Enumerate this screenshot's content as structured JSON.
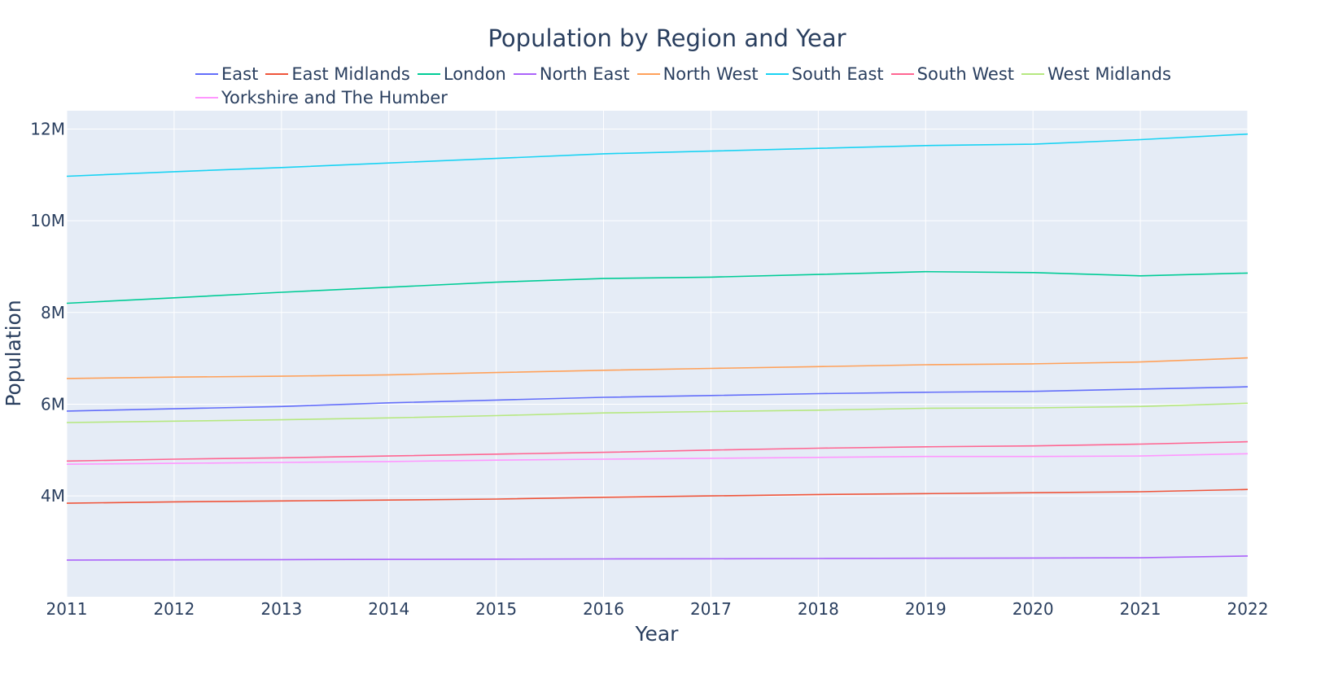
{
  "chart_data": {
    "type": "line",
    "title": "Population by Region and Year",
    "xlabel": "Year",
    "ylabel": "Population",
    "x": [
      2011,
      2012,
      2013,
      2014,
      2015,
      2016,
      2017,
      2018,
      2019,
      2020,
      2021,
      2022
    ],
    "x_ticks": [
      "2011",
      "2012",
      "2013",
      "2014",
      "2015",
      "2016",
      "2017",
      "2018",
      "2019",
      "2020",
      "2021",
      "2022"
    ],
    "ylim": [
      1800000,
      12400000
    ],
    "y_ticks": [
      {
        "value": 4000000,
        "label": "4M"
      },
      {
        "value": 6000000,
        "label": "6M"
      },
      {
        "value": 8000000,
        "label": "8M"
      },
      {
        "value": 10000000,
        "label": "10M"
      },
      {
        "value": 12000000,
        "label": "12M"
      }
    ],
    "grid": true,
    "legend_position": "top",
    "series": [
      {
        "name": "East",
        "color": "#636efa",
        "values": [
          5850000,
          5900000,
          5950000,
          6030000,
          6090000,
          6150000,
          6190000,
          6230000,
          6260000,
          6280000,
          6330000,
          6380000
        ]
      },
      {
        "name": "East Midlands",
        "color": "#EF553B",
        "values": [
          3840000,
          3870000,
          3890000,
          3910000,
          3930000,
          3970000,
          4000000,
          4030000,
          4050000,
          4070000,
          4090000,
          4140000
        ]
      },
      {
        "name": "London",
        "color": "#00cc96",
        "values": [
          8200000,
          8320000,
          8440000,
          8550000,
          8660000,
          8740000,
          8770000,
          8830000,
          8890000,
          8870000,
          8800000,
          8860000
        ]
      },
      {
        "name": "North East",
        "color": "#ab63fa",
        "values": [
          2600000,
          2605000,
          2610000,
          2615000,
          2620000,
          2625000,
          2630000,
          2635000,
          2640000,
          2645000,
          2650000,
          2690000
        ]
      },
      {
        "name": "North West",
        "color": "#FFA15A",
        "values": [
          6560000,
          6590000,
          6610000,
          6640000,
          6690000,
          6740000,
          6780000,
          6820000,
          6860000,
          6880000,
          6920000,
          7010000
        ]
      },
      {
        "name": "South East",
        "color": "#19d3f3",
        "values": [
          10970000,
          11070000,
          11160000,
          11260000,
          11360000,
          11460000,
          11520000,
          11580000,
          11640000,
          11670000,
          11770000,
          11890000
        ]
      },
      {
        "name": "South West",
        "color": "#FF6692",
        "values": [
          4760000,
          4800000,
          4830000,
          4870000,
          4910000,
          4950000,
          5000000,
          5040000,
          5070000,
          5090000,
          5130000,
          5180000
        ]
      },
      {
        "name": "West Midlands",
        "color": "#B6E880",
        "values": [
          5600000,
          5630000,
          5660000,
          5700000,
          5750000,
          5810000,
          5840000,
          5870000,
          5910000,
          5920000,
          5950000,
          6020000
        ]
      },
      {
        "name": "Yorkshire and The Humber",
        "color": "#FF97FF",
        "values": [
          4690000,
          4710000,
          4730000,
          4750000,
          4780000,
          4800000,
          4820000,
          4840000,
          4860000,
          4860000,
          4870000,
          4920000
        ]
      }
    ]
  }
}
